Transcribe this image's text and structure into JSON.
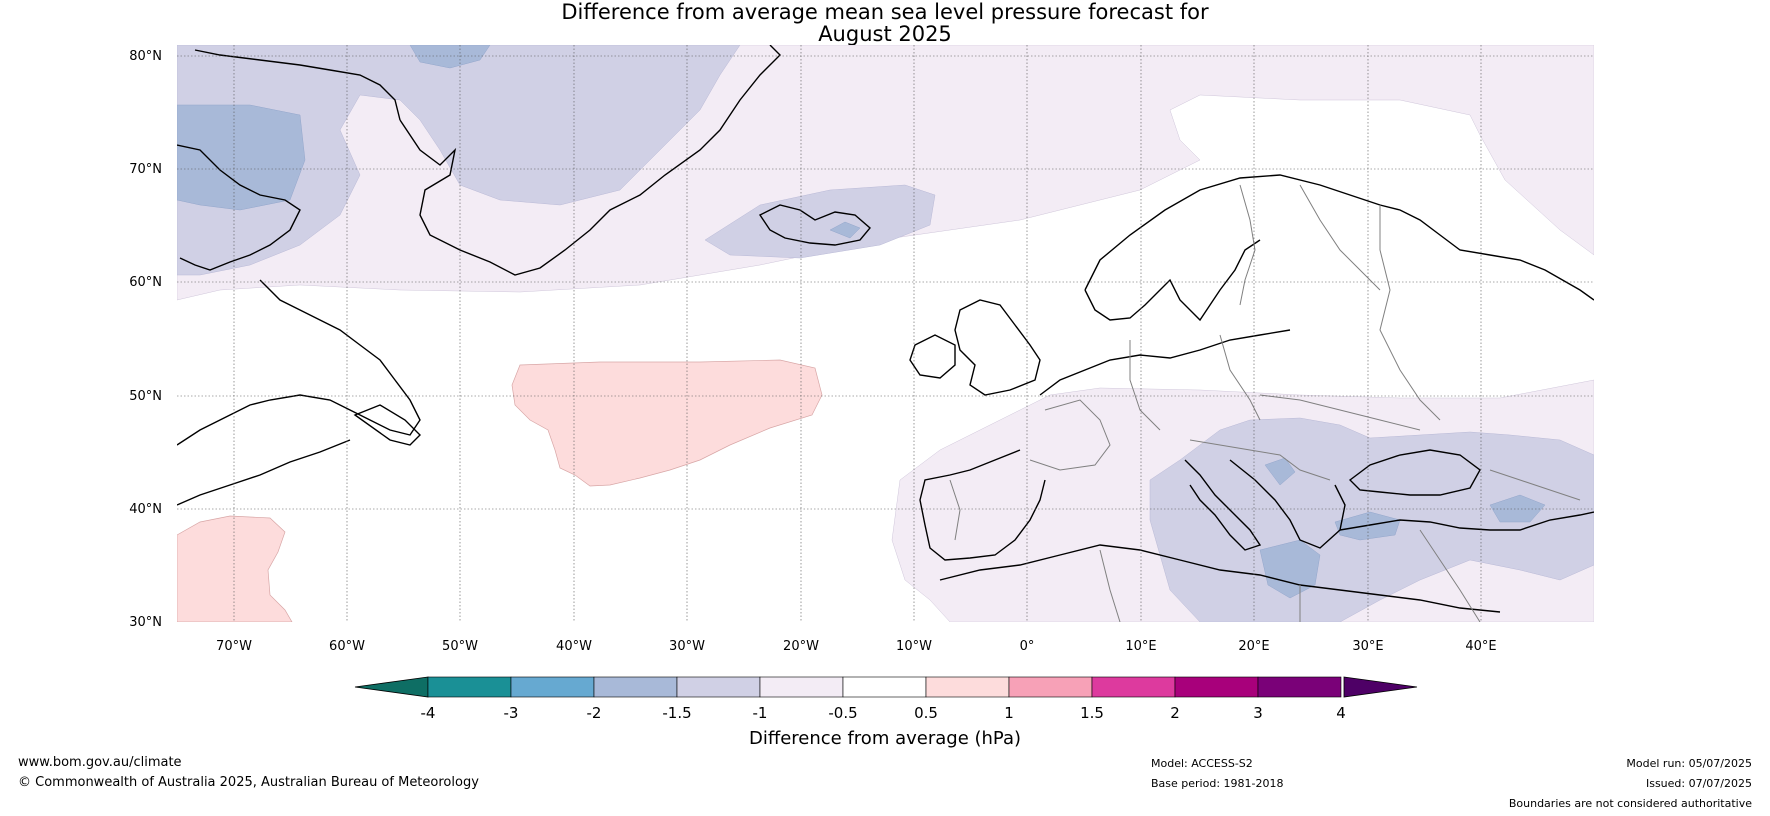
{
  "title": {
    "line1": "Difference from average mean sea level pressure forecast for",
    "line2": "August 2025"
  },
  "map": {
    "lon_range": [
      -75,
      50
    ],
    "lat_range": [
      30,
      81
    ],
    "lat_ticks": [
      "80°N",
      "70°N",
      "60°N",
      "50°N",
      "40°N",
      "30°N"
    ],
    "lon_ticks": [
      "70°W",
      "60°W",
      "50°W",
      "40°W",
      "30°W",
      "20°W",
      "10°W",
      "0°",
      "10°E",
      "20°E",
      "30°E",
      "40°E"
    ],
    "gridlines": true
  },
  "colorbar": {
    "title": "Difference from average (hPa)",
    "tick_labels": [
      "-4",
      "-3",
      "-2",
      "-1.5",
      "-1",
      "-0.5",
      "0.5",
      "1",
      "1.5",
      "2",
      "3",
      "4"
    ],
    "colors": [
      "#1a9096",
      "#66a9d1",
      "#a8b9d8",
      "#d0d0e5",
      "#f3ecf5",
      "#ffffff",
      "#fddcdc",
      "#f7a1b7",
      "#dd3a9e",
      "#a8007b",
      "#7a0178"
    ],
    "under_color": "#0e6e64",
    "over_color": "#4e0066"
  },
  "footer": {
    "website": "www.bom.gov.au/climate",
    "copyright": "© Commonwealth of Australia 2025, Australian Bureau of Meteorology",
    "model": "Model: ACCESS-S2",
    "base_period": "Base period: 1981-2018",
    "model_run": "Model run: 05/07/2025",
    "issued": "Issued: 07/07/2025",
    "disclaimer": "Boundaries are not considered authoritative"
  }
}
